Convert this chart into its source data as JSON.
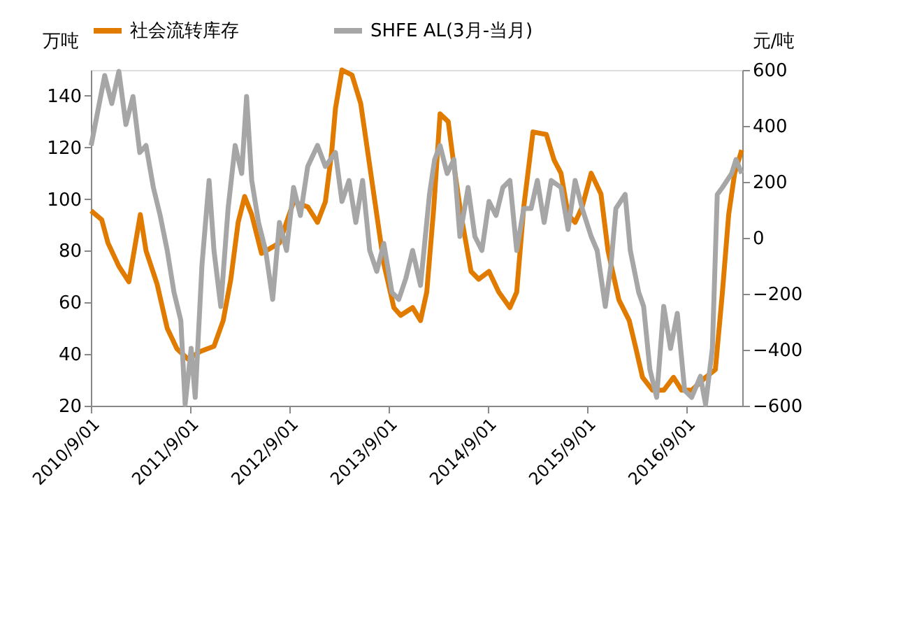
{
  "chart_data": {
    "type": "line",
    "ylabel": "万吨",
    "y2label": "元/吨",
    "legend": "top",
    "grid": false,
    "line_style": "solid",
    "marker": "none",
    "xlim": [
      "2010-09-01",
      "2017-03-25"
    ],
    "xticks": [
      {
        "value": "2010-09-01",
        "label": "2010/9/01"
      },
      {
        "value": "2011-09-01",
        "label": "2011/9/01"
      },
      {
        "value": "2012-09-01",
        "label": "2012/9/01"
      },
      {
        "value": "2013-09-01",
        "label": "2013/9/01"
      },
      {
        "value": "2014-09-01",
        "label": "2014/9/01"
      },
      {
        "value": "2015-09-01",
        "label": "2015/9/01"
      },
      {
        "value": "2016-09-01",
        "label": "2016/9/01"
      }
    ],
    "ylim": [
      20,
      150
    ],
    "yticks": [
      20,
      40,
      60,
      80,
      100,
      120,
      140
    ],
    "y2lim": [
      -600,
      600
    ],
    "y2ticks": [
      -600,
      -400,
      -200,
      0,
      200,
      400,
      600
    ],
    "series": [
      {
        "name": "社会流转库存",
        "color": "#e07b00",
        "x": [
          "2010-09-02",
          "2010-10-11",
          "2010-11-03",
          "2010-12-13",
          "2011-01-19",
          "2011-03-02",
          "2011-03-23",
          "2011-05-03",
          "2011-06-09",
          "2011-07-15",
          "2011-08-25",
          "2011-10-08",
          "2011-11-28",
          "2012-01-01",
          "2012-01-29",
          "2012-02-25",
          "2012-03-20",
          "2012-04-15",
          "2012-05-21",
          "2012-07-26",
          "2012-09-16",
          "2012-11-07",
          "2012-12-13",
          "2013-01-11",
          "2013-02-03",
          "2013-02-17",
          "2013-03-13",
          "2013-04-19",
          "2013-05-21",
          "2013-06-23",
          "2013-07-19",
          "2013-08-14",
          "2013-09-20",
          "2013-10-15",
          "2013-11-28",
          "2013-12-27",
          "2014-01-19",
          "2014-02-14",
          "2014-03-09",
          "2014-04-08",
          "2014-04-29",
          "2014-05-25",
          "2014-07-01",
          "2014-07-29",
          "2014-09-05",
          "2014-10-11",
          "2014-11-21",
          "2014-12-16",
          "2015-01-11",
          "2015-02-14",
          "2015-04-04",
          "2015-05-03",
          "2015-05-28",
          "2015-06-23",
          "2015-07-19",
          "2015-08-14",
          "2015-09-16",
          "2015-10-22",
          "2015-11-17",
          "2015-12-27",
          "2016-02-03",
          "2016-02-28",
          "2016-03-23",
          "2016-04-29",
          "2016-06-09",
          "2016-07-15",
          "2016-08-14",
          "2016-09-20",
          "2016-11-10",
          "2016-12-16",
          "2017-01-11",
          "2017-02-03",
          "2017-02-25",
          "2017-03-23"
        ],
        "values": [
          95.5,
          92,
          83,
          74,
          68,
          94,
          80,
          67,
          50,
          42,
          38,
          41,
          43,
          53,
          69,
          91,
          101,
          94,
          79,
          83,
          99,
          97,
          91,
          99,
          118,
          135,
          150,
          148,
          137,
          113,
          94,
          75,
          58,
          55,
          58,
          53,
          64,
          97,
          133,
          130,
          113,
          94,
          72,
          69,
          72,
          64,
          58,
          64,
          97,
          126,
          125,
          115,
          110,
          94,
          91,
          97,
          110,
          102,
          80,
          61,
          53,
          42,
          31,
          26,
          26,
          31,
          26,
          26,
          31,
          34,
          64,
          94,
          110,
          119
        ]
      },
      {
        "name": "SHFE AL(3月-当月)",
        "color": "#a6a6a6",
        "axis": "y2",
        "x": [
          "2010-09-02",
          "2010-09-27",
          "2010-10-22",
          "2010-11-17",
          "2010-12-13",
          "2011-01-08",
          "2011-02-03",
          "2011-02-28",
          "2011-03-23",
          "2011-04-19",
          "2011-05-14",
          "2011-06-09",
          "2011-07-04",
          "2011-07-29",
          "2011-08-14",
          "2011-09-05",
          "2011-09-20",
          "2011-10-15",
          "2011-11-10",
          "2011-11-28",
          "2011-12-23",
          "2012-01-19",
          "2012-02-14",
          "2012-03-09",
          "2012-03-27",
          "2012-04-15",
          "2012-05-10",
          "2012-06-05",
          "2012-07-01",
          "2012-07-26",
          "2012-08-21",
          "2012-09-16",
          "2012-10-11",
          "2012-11-07",
          "2012-12-13",
          "2013-01-11",
          "2013-02-17",
          "2013-03-13",
          "2013-04-08",
          "2013-05-03",
          "2013-05-28",
          "2013-06-23",
          "2013-07-19",
          "2013-08-14",
          "2013-09-13",
          "2013-10-08",
          "2013-11-03",
          "2013-11-28",
          "2013-12-27",
          "2014-01-29",
          "2014-02-17",
          "2014-03-09",
          "2014-04-04",
          "2014-04-29",
          "2014-05-21",
          "2014-06-20",
          "2014-07-15",
          "2014-08-10",
          "2014-09-05",
          "2014-10-01",
          "2014-10-26",
          "2014-11-21",
          "2014-12-16",
          "2015-01-11",
          "2015-02-07",
          "2015-03-02",
          "2015-03-27",
          "2015-04-22",
          "2015-05-28",
          "2015-06-23",
          "2015-07-19",
          "2015-08-14",
          "2015-09-16",
          "2015-10-08",
          "2015-11-07",
          "2015-11-28",
          "2015-12-16",
          "2016-01-19",
          "2016-02-07",
          "2016-03-09",
          "2016-03-27",
          "2016-04-19",
          "2016-05-14",
          "2016-06-09",
          "2016-07-04",
          "2016-07-29",
          "2016-08-25",
          "2016-09-20",
          "2016-10-22",
          "2016-11-10",
          "2016-12-05",
          "2016-12-23",
          "2017-01-11",
          "2017-02-14",
          "2017-03-02",
          "2017-03-23"
        ],
        "values": [
          330,
          455,
          580,
          480,
          595,
          405,
          505,
          305,
          330,
          180,
          80,
          -45,
          -195,
          -295,
          -595,
          -395,
          -570,
          -95,
          205,
          -45,
          -245,
          105,
          330,
          230,
          505,
          205,
          55,
          -45,
          -220,
          55,
          -45,
          180,
          80,
          255,
          330,
          255,
          305,
          130,
          205,
          55,
          205,
          -45,
          -120,
          -20,
          -195,
          -220,
          -145,
          -45,
          -170,
          155,
          280,
          330,
          230,
          280,
          5,
          180,
          5,
          -45,
          130,
          80,
          180,
          205,
          -45,
          105,
          105,
          205,
          55,
          205,
          180,
          30,
          205,
          105,
          5,
          -45,
          -245,
          -95,
          105,
          155,
          -45,
          -195,
          -245,
          -470,
          -570,
          -245,
          -395,
          -270,
          -545,
          -570,
          -495,
          -595,
          -395,
          155,
          180,
          230,
          280,
          230
        ]
      }
    ]
  }
}
